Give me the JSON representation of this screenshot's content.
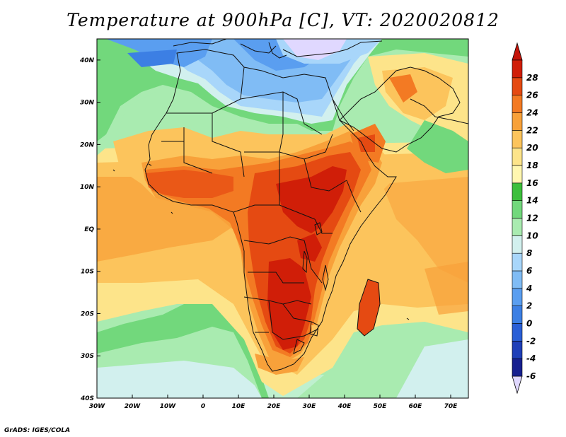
{
  "title": "Temperature at 900hPa [C], VT: 2020020812",
  "credit": "GrADS: IGES/COLA",
  "map": {
    "lon_range": [
      -30,
      75
    ],
    "lat_range": [
      -40,
      45
    ],
    "lon_ticks": [
      {
        "value": -30,
        "label": "30W"
      },
      {
        "value": -20,
        "label": "20W"
      },
      {
        "value": -10,
        "label": "10W"
      },
      {
        "value": 0,
        "label": "0"
      },
      {
        "value": 10,
        "label": "10E"
      },
      {
        "value": 20,
        "label": "20E"
      },
      {
        "value": 30,
        "label": "30E"
      },
      {
        "value": 40,
        "label": "40E"
      },
      {
        "value": 50,
        "label": "50E"
      },
      {
        "value": 60,
        "label": "60E"
      },
      {
        "value": 70,
        "label": "70E"
      }
    ],
    "lat_ticks": [
      {
        "value": 40,
        "label": "40N"
      },
      {
        "value": 30,
        "label": "30N"
      },
      {
        "value": 20,
        "label": "20N"
      },
      {
        "value": 10,
        "label": "10N"
      },
      {
        "value": 0,
        "label": "EQ"
      },
      {
        "value": -10,
        "label": "10S"
      },
      {
        "value": -20,
        "label": "20S"
      },
      {
        "value": -30,
        "label": "30S"
      },
      {
        "value": -40,
        "label": "40S"
      }
    ]
  },
  "colorbar": {
    "labels": [
      "-6",
      "-4",
      "-2",
      "0",
      "2",
      "4",
      "6",
      "8",
      "10",
      "12",
      "14",
      "16",
      "18",
      "20",
      "22",
      "24",
      "26",
      "28"
    ],
    "colors": [
      "#17208f",
      "#1f3fb8",
      "#2a5fd6",
      "#3c7fe4",
      "#5a9ef0",
      "#80bcf5",
      "#a8d6fa",
      "#d2f0ee",
      "#a9ebb0",
      "#72d87c",
      "#3cbf3c",
      "#fff7b0",
      "#fde48a",
      "#fcc45c",
      "#f8a13a",
      "#f37a23",
      "#e54a12",
      "#d01e08"
    ],
    "under_color": "#e0d8ff",
    "over_color": "#c4140a"
  }
}
